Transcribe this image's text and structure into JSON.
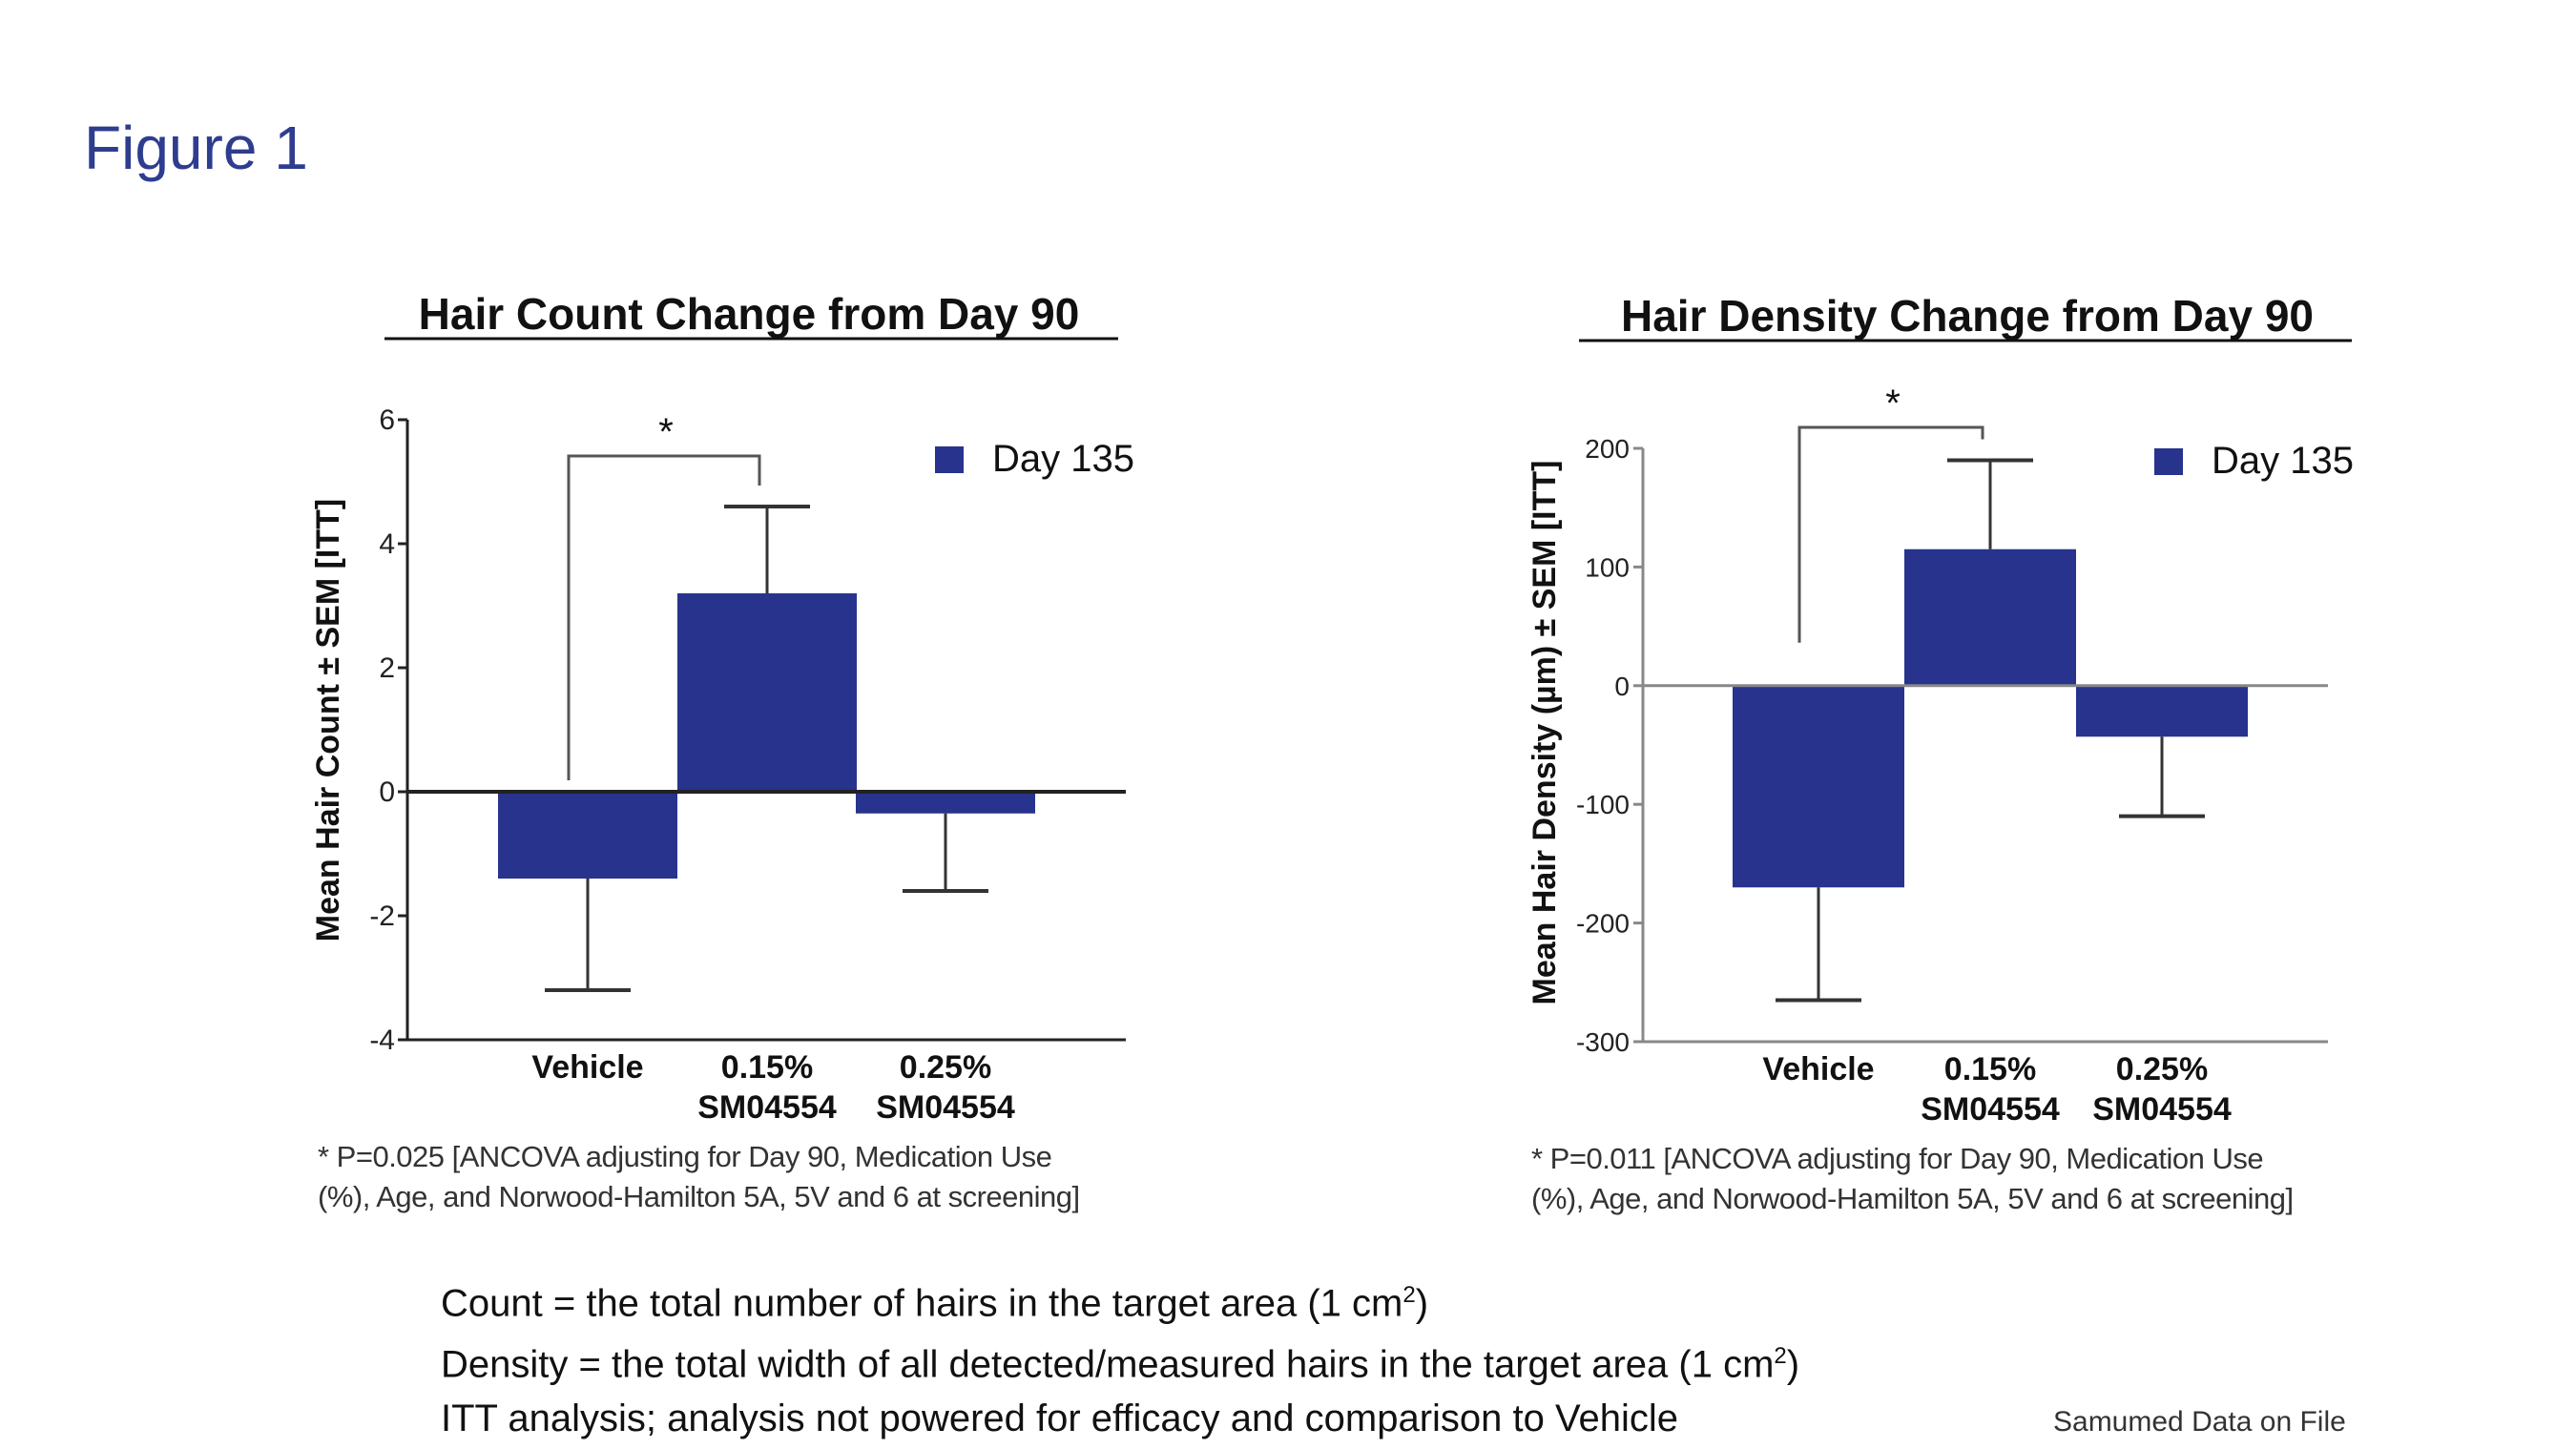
{
  "figure_label": "Figure 1",
  "colors": {
    "bar": "#27338c",
    "title": "#2f3d8f",
    "axis": "#222222",
    "axis_light": "#888888"
  },
  "chart_data": [
    {
      "type": "bar",
      "title": "Hair Count Change from Day 90",
      "ylabel": "Mean Hair Count ± SEM [ITT]",
      "xlabel": "",
      "categories": [
        [
          "Vehicle"
        ],
        [
          "0.15%",
          "SM04554"
        ],
        [
          "0.25%",
          "SM04554"
        ]
      ],
      "series": [
        {
          "name": "Day 135",
          "values": [
            -1.4,
            3.2,
            -0.35
          ],
          "error_low": [
            -3.2,
            3.2,
            -1.6
          ],
          "error_high": [
            -1.4,
            4.6,
            -0.35
          ]
        }
      ],
      "ylim": [
        -4,
        6
      ],
      "yticks": [
        "6",
        "4",
        "2",
        "0",
        "-2",
        "-4"
      ],
      "significance": {
        "label": "*",
        "between": [
          "Vehicle",
          "0.15% SM04554"
        ]
      },
      "legend_position": "top-right",
      "footnote": [
        "* P=0.025 [ANCOVA adjusting for Day 90, Medication Use",
        "(%), Age, and Norwood-Hamilton 5A, 5V and 6 at screening]"
      ]
    },
    {
      "type": "bar",
      "title": "Hair Density Change from Day 90",
      "ylabel": "Mean Hair Density (µm) ± SEM [ITT]",
      "xlabel": "",
      "categories": [
        [
          "Vehicle"
        ],
        [
          "0.15%",
          "SM04554"
        ],
        [
          "0.25%",
          "SM04554"
        ]
      ],
      "series": [
        {
          "name": "Day 135",
          "values": [
            -170,
            115,
            -43
          ],
          "error_low": [
            -265,
            115,
            -110
          ],
          "error_high": [
            -170,
            190,
            -43
          ]
        }
      ],
      "ylim": [
        -300,
        200
      ],
      "yticks": [
        "200",
        "100",
        "0",
        "-100",
        "-200",
        "-300"
      ],
      "significance": {
        "label": "*",
        "between": [
          "Vehicle",
          "0.15% SM04554"
        ]
      },
      "legend_position": "top-right",
      "footnote": [
        "* P=0.011 [ANCOVA adjusting for Day 90, Medication Use",
        "(%), Age, and Norwood-Hamilton 5A, 5V and 6 at screening]"
      ]
    }
  ],
  "definitions": {
    "count_text": "Count = the total number  of hairs in the target area (1 cm",
    "count_sup": "2",
    "count_end": ")",
    "density_text": "Density = the total width of all detected/measured  hairs in the target area (1 cm",
    "density_sup": "2",
    "density_end": ")",
    "itt_text": "ITT analysis; analysis not powered for efficacy and comparison to Vehicle"
  },
  "source_note": "Samumed Data on File"
}
